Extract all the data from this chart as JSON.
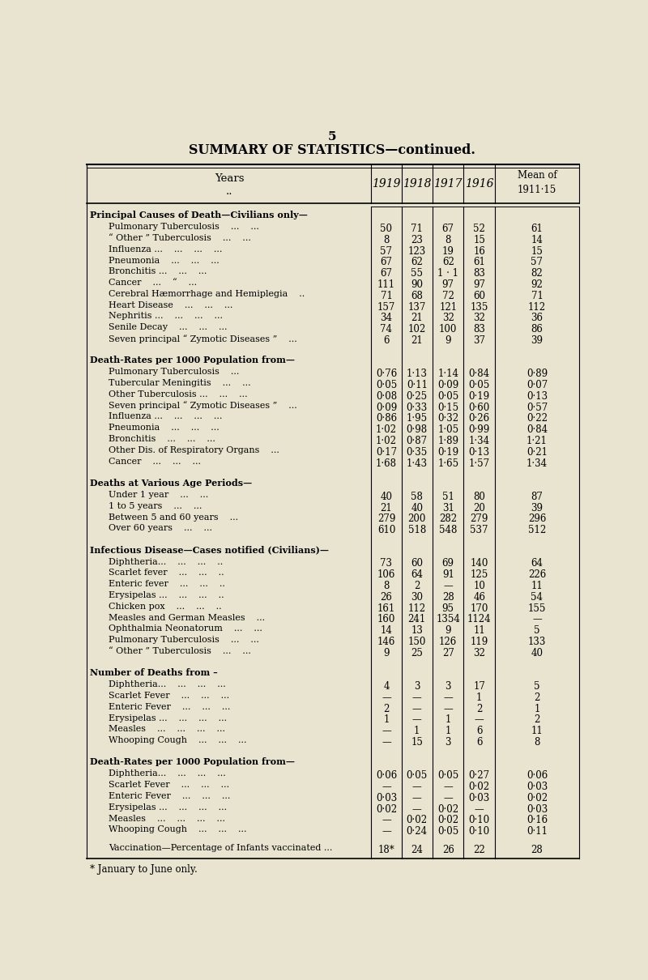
{
  "page_number": "5",
  "title": "SUMMARY OF STATISTICS—continued.",
  "bg_color": "#e8e4d0",
  "sections": [
    {
      "header": "Principal Causes of Death—Civilians only—",
      "rows": [
        [
          "Pulmonary Tuberculosis    ...    ...",
          "50",
          "71",
          "67",
          "52",
          "61"
        ],
        [
          "“ Other ” Tuberculosis    ...    ...",
          "8",
          "23",
          "8",
          "15",
          "14"
        ],
        [
          "Influenza ...    ...    ...    ...",
          "57",
          "123",
          "19",
          "16",
          "15"
        ],
        [
          "Pneumonia    ...    ...    ...",
          "67",
          "62",
          "62",
          "61",
          "57"
        ],
        [
          "Bronchitis ...    ...    ...",
          "67",
          "55",
          "1 · 1",
          "83",
          "82"
        ],
        [
          "Cancer    ...    “    ...",
          "111",
          "90",
          "97",
          "97",
          "92"
        ],
        [
          "Cerebral Hæmorrhage and Hemiplegia    ..",
          "71",
          "68",
          "72",
          "60",
          "71"
        ],
        [
          "Heart Disease    ...    ...    ...",
          "157",
          "137",
          "121",
          "135",
          "112"
        ],
        [
          "Nephritis ...    ...    ...    ...",
          "34",
          "21",
          "32",
          "32",
          "36"
        ],
        [
          "Senile Decay    ...    ...    ...",
          "74",
          "102",
          "100",
          "83",
          "86"
        ],
        [
          "Seven principal “ Zymotic Diseases ”    ...",
          "6",
          "21",
          "9",
          "37",
          "39"
        ]
      ]
    },
    {
      "header": "Death-Rates per 1000 Population from—",
      "rows": [
        [
          "Pulmonary Tuberculosis    ...",
          "0·76",
          "1·13",
          "1·14",
          "0·84",
          "0·89"
        ],
        [
          "Tubercular Meningitis    ...    ...",
          "0·05",
          "0·11",
          "0·09",
          "0·05",
          "0·07"
        ],
        [
          "Other Tuberculosis ...    ...    ...",
          "0·08",
          "0·25",
          "0·05",
          "0·19",
          "0·13"
        ],
        [
          "Seven principal “ Zymotic Diseases ”    ...",
          "0·09",
          "0·33",
          "0·15",
          "0·60",
          "0·57"
        ],
        [
          "Influenza ...    ...    ...    ...",
          "0·86",
          "1·95",
          "0·32",
          "0·26",
          "0·22"
        ],
        [
          "Pneumonia    ...    ...    ...",
          "1·02",
          "0·98",
          "1·05",
          "0·99",
          "0·84"
        ],
        [
          "Bronchitis    ...    ...    ...",
          "1·02",
          "0·87",
          "1·89",
          "1·34",
          "1·21"
        ],
        [
          "Other Dis. of Respiratory Organs    ...",
          "0·17",
          "0·35",
          "0·19",
          "0·13",
          "0·21"
        ],
        [
          "Cancer    ...    ...    ...",
          "1·68",
          "1·43",
          "1·65",
          "1·57",
          "1·34"
        ]
      ]
    },
    {
      "header": "Deaths at Various Age Periods—",
      "rows": [
        [
          "Under 1 year    ...    ...",
          "40",
          "58",
          "51",
          "80",
          "87"
        ],
        [
          "1 to 5 years    ...    ...",
          "21",
          "40",
          "31",
          "20",
          "39"
        ],
        [
          "Between 5 and 60 years    ...",
          "279",
          "200",
          "282",
          "279",
          "296"
        ],
        [
          "Over 60 years    ...    ...",
          "610",
          "518",
          "548",
          "537",
          "512"
        ]
      ]
    },
    {
      "header": "Infectious Disease—Cases notified (Civilians)—",
      "rows": [
        [
          "Diphtheria...    ...    ...    ..",
          "73",
          "60",
          "69",
          "140",
          "64"
        ],
        [
          "Scarlet fever    ...    ...    ..",
          "106",
          "64",
          "91",
          "125",
          "226"
        ],
        [
          "Enteric fever    ...    ...    ..",
          "8",
          "2",
          "—",
          "10",
          "11"
        ],
        [
          "Erysipelas ...    ...    ...    ..",
          "26",
          "30",
          "28",
          "46",
          "54"
        ],
        [
          "Chicken pox    ...    ...    ..",
          "161",
          "112",
          "95",
          "170",
          "155"
        ],
        [
          "Measles and German Measles    ...",
          "160",
          "241",
          "1354",
          "1124",
          "—"
        ],
        [
          "Ophthalmia Neonatorum    ...    ...",
          "14",
          "13",
          "9",
          "11",
          "5"
        ],
        [
          "Pulmonary Tuberculosis    ...    ...",
          "146",
          "150",
          "126",
          "119",
          "133"
        ],
        [
          "“ Other ” Tuberculosis    ...    ...",
          "9",
          "25",
          "27",
          "32",
          "40"
        ]
      ]
    },
    {
      "header": "Number of Deaths from –",
      "rows": [
        [
          "Diphtheria...    ...    ...    ...",
          "4",
          "3",
          "3",
          "17",
          "5"
        ],
        [
          "Scarlet Fever    ...    ...    ...",
          "—",
          "—",
          "—",
          "1",
          "2"
        ],
        [
          "Enteric Fever    ...    ...    ...",
          "2",
          "—",
          "—",
          "2",
          "1"
        ],
        [
          "Erysipelas ...    ...    ...    ...",
          "1",
          "—",
          "1",
          "—",
          "2"
        ],
        [
          "Measles    ...    ...    ...    ...",
          "—",
          "1",
          "1",
          "6",
          "11"
        ],
        [
          "Whooping Cough    ...    ...    ...",
          "—",
          "15",
          "3",
          "6",
          "8"
        ]
      ]
    },
    {
      "header": "Death-Rates per 1000 Population from—",
      "rows": [
        [
          "Diphtheria...    ...    ...    ...",
          "0·06",
          "0·05",
          "0·05",
          "0·27",
          "0·06"
        ],
        [
          "Scarlet Fever    ...    ...    ...",
          "—",
          "—",
          "—",
          "0·02",
          "0·03"
        ],
        [
          "Enteric Fever    ...    ...    ...",
          "0·03",
          "—",
          "—",
          "0·03",
          "0·02"
        ],
        [
          "Erysipelas ...    ...    ...    ...",
          "0·02",
          "—",
          "0·02",
          "—",
          "0·03"
        ],
        [
          "Measles    ...    ...    ...    ...",
          "—",
          "0·02",
          "0·02",
          "0·10",
          "0·16"
        ],
        [
          "Whooping Cough    ...    ...    ...",
          "—",
          "0·24",
          "0·05",
          "0·10",
          "0·11"
        ]
      ]
    },
    {
      "header": "",
      "rows": [
        [
          "Vaccination—Percentage of Infants vaccinated ...",
          "18*",
          "24",
          "26",
          "22",
          "28"
        ]
      ]
    }
  ],
  "footnote": "* January to June only."
}
